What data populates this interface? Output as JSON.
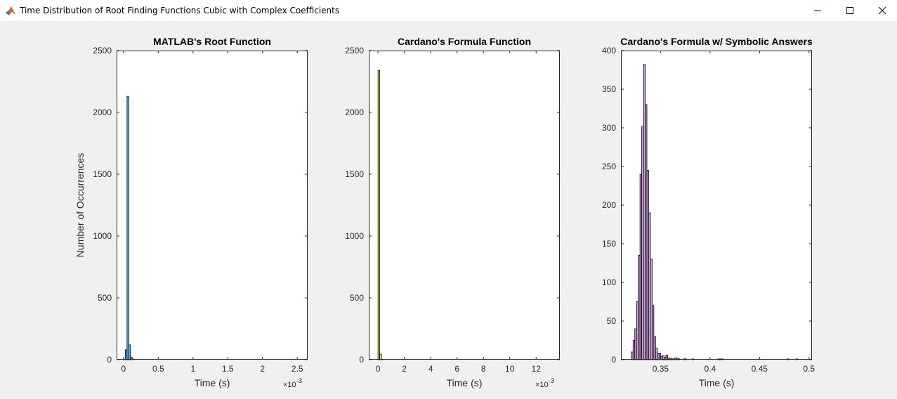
{
  "window": {
    "title": "Time Distribution of Root Finding Functions Cubic with Complex Coefficients",
    "icon": "matlab-icon",
    "controls": [
      "minimize-icon",
      "maximize-icon",
      "close-icon"
    ]
  },
  "colors": {
    "background": "#f0f0f0",
    "axes_background": "#ffffff",
    "bar_edge": "#000000",
    "bar_fill_1": "#4dbeee",
    "bar_fill_2": "#d4e157",
    "bar_fill_3": "#c9a0dc"
  },
  "chart_data": [
    {
      "type": "bar",
      "title": "MATLAB's Root Function",
      "xlabel": "Time (s)",
      "ylabel": "Number of Occurrences",
      "xlim": [
        -0.1,
        2.65
      ],
      "ylim": [
        0,
        2500
      ],
      "xticks": [
        0,
        0.5,
        1,
        1.5,
        2,
        2.5
      ],
      "xticklabels": [
        "0",
        "0.5",
        "1",
        "1.5",
        "2",
        "2.5"
      ],
      "yticks": [
        0,
        500,
        1000,
        1500,
        2000,
        2500
      ],
      "yticklabels": [
        "0",
        "500",
        "1000",
        "1500",
        "2000",
        "2500"
      ],
      "exponent": "×10",
      "exponent_power": "-3",
      "bin_width": 0.025,
      "bin_start": 0.0,
      "counts": [
        4,
        80,
        2130,
        120,
        20,
        5
      ]
    },
    {
      "type": "bar",
      "title": "Cardano's Formula Function",
      "xlabel": "Time (s)",
      "ylabel": "",
      "xlim": [
        -0.7,
        13.8
      ],
      "ylim": [
        0,
        2500
      ],
      "xticks": [
        0,
        2,
        4,
        6,
        8,
        10,
        12
      ],
      "xticklabels": [
        "0",
        "2",
        "4",
        "6",
        "8",
        "10",
        "12"
      ],
      "yticks": [
        0,
        500,
        1000,
        1500,
        2000,
        2500
      ],
      "yticklabels": [
        "0",
        "500",
        "1000",
        "1500",
        "2000",
        "2500"
      ],
      "exponent": "×10",
      "exponent_power": "-3",
      "bin_width": 0.13,
      "bin_start": 0.0,
      "counts": [
        2340,
        45,
        3
      ]
    },
    {
      "type": "bar",
      "title": "Cardano's Formula w/ Symbolic Answers",
      "xlabel": "Time (s)",
      "ylabel": "",
      "xlim": [
        0.31,
        0.503
      ],
      "ylim": [
        0,
        400
      ],
      "xticks": [
        0.35,
        0.4,
        0.45,
        0.5
      ],
      "xticklabels": [
        "0.35",
        "0.4",
        "0.45",
        "0.5"
      ],
      "yticks": [
        0,
        50,
        100,
        150,
        200,
        250,
        300,
        350,
        400
      ],
      "yticklabels": [
        "0",
        "50",
        "100",
        "150",
        "200",
        "250",
        "300",
        "350",
        "400"
      ],
      "bin_width": 0.00175,
      "bin_start": 0.3205,
      "counts": [
        10,
        25,
        40,
        75,
        135,
        240,
        302,
        382,
        330,
        245,
        190,
        130,
        70,
        30,
        15,
        8,
        8,
        4,
        5,
        3,
        6,
        2,
        2,
        1,
        1,
        2,
        2,
        1,
        0,
        0,
        1,
        1,
        0,
        0,
        0,
        1,
        0,
        0,
        0,
        0,
        0,
        0,
        0,
        0,
        0,
        0,
        0,
        0,
        0,
        0,
        1,
        1,
        1,
        0,
        0,
        0,
        0,
        0,
        0,
        0,
        0,
        0,
        0,
        0,
        0,
        0,
        0,
        0,
        0,
        0,
        0,
        0,
        0,
        0,
        0,
        0,
        0,
        0,
        0,
        0,
        0,
        0,
        0,
        0,
        0,
        0,
        0,
        0,
        0,
        0,
        1,
        0,
        0,
        0,
        0,
        1
      ]
    }
  ]
}
